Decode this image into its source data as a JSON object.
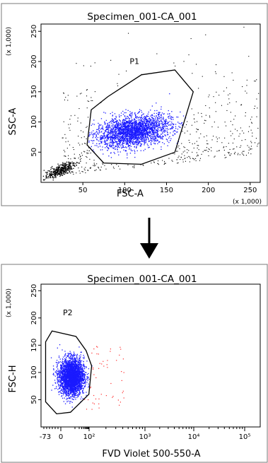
{
  "colors": {
    "background": "#ffffff",
    "axis": "#000000",
    "gate": "#000000",
    "dots_black": "#000000",
    "dots_blue": "#1a1aff",
    "dots_red": "#ff2a2a"
  },
  "arrow": {
    "icon": "down-arrow-icon"
  },
  "chart_data": [
    {
      "type": "scatter",
      "title": "Specimen_001-CA_001",
      "xlabel": "FSC-A",
      "ylabel": "SSC-A",
      "x_multiplier": "(x 1,000)",
      "y_multiplier": "(x 1,000)",
      "xlim": [
        0,
        262
      ],
      "ylim": [
        0,
        262
      ],
      "x_ticks": [
        "50",
        "100",
        "150",
        "200",
        "250"
      ],
      "y_ticks": [
        "50",
        "100",
        "150",
        "200",
        "250"
      ],
      "x_tick_values": [
        50,
        100,
        150,
        200,
        250
      ],
      "y_tick_values": [
        50,
        100,
        150,
        200,
        250
      ],
      "gate": {
        "name": "P1",
        "polygon": [
          [
            60,
            120
          ],
          [
            80,
            142
          ],
          [
            120,
            178
          ],
          [
            160,
            186
          ],
          [
            182,
            150
          ],
          [
            160,
            50
          ],
          [
            120,
            30
          ],
          [
            75,
            32
          ],
          [
            55,
            62
          ]
        ]
      },
      "series": [
        {
          "name": "",
          "values": {
            "gated": "P1",
            "center": [
              110,
              85
            ],
            "spread": [
              30,
              17
            ],
            "count": 2500
          }
        }
      ]
    },
    {
      "type": "scatter",
      "title": "Specimen_001-CA_001",
      "xlabel": "FVD Violet 500-550-A",
      "ylabel": "FSC-H",
      "y_multiplier": "(x 1,000)",
      "x_scale": "biexponential",
      "ylim": [
        0,
        262
      ],
      "x_ticks": [
        "-73",
        "0",
        "10²",
        "10³",
        "10⁴",
        "10⁵"
      ],
      "y_ticks": [
        "50",
        "100",
        "150",
        "200",
        "250"
      ],
      "y_tick_values": [
        50,
        100,
        150,
        200,
        250
      ],
      "gate": {
        "name": "P2",
        "polygon": [
          [
            0.05,
            156
          ],
          [
            0.12,
            176
          ],
          [
            0.38,
            166
          ],
          [
            0.49,
            140
          ],
          [
            0.55,
            112
          ],
          [
            0.52,
            60
          ],
          [
            0.32,
            27
          ],
          [
            0.17,
            24
          ],
          [
            0.05,
            46
          ]
        ]
      },
      "series": [
        {
          "name": "",
          "values": {
            "gated": "P2",
            "center": [
              0.33,
              93
            ],
            "spread": [
              0.12,
              30
            ],
            "count": 3000
          }
        }
      ]
    }
  ]
}
